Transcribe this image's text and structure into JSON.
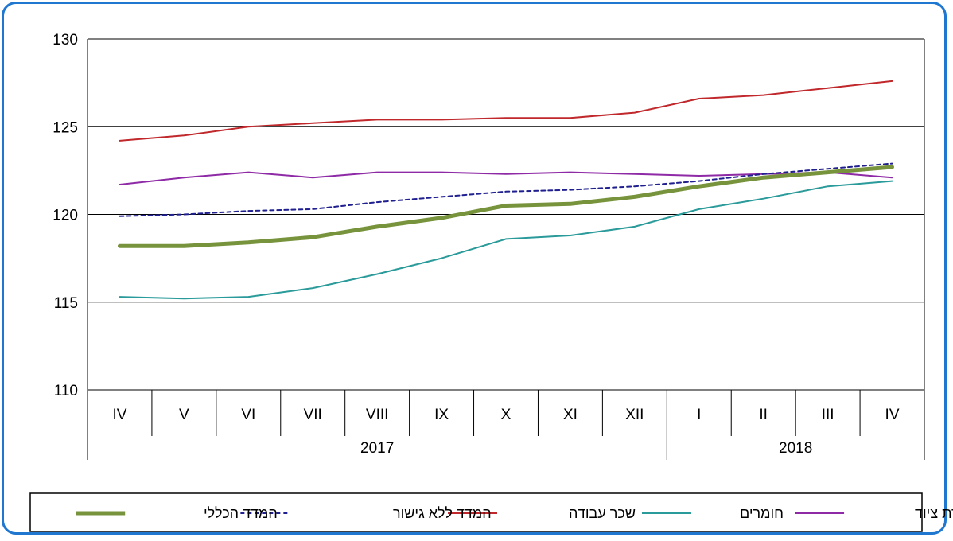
{
  "chart_data": {
    "type": "line",
    "categories": [
      "IV",
      "V",
      "VI",
      "VII",
      "VIII",
      "IX",
      "X",
      "XI",
      "XII",
      "I",
      "II",
      "III",
      "IV"
    ],
    "year_groups": [
      {
        "label": "2017",
        "start": 0,
        "end": 8
      },
      {
        "label": "2018",
        "start": 9,
        "end": 12
      }
    ],
    "ylim": [
      110,
      130
    ],
    "yticks": [
      "110",
      "115",
      "120",
      "125",
      "130"
    ],
    "grid": true,
    "legend_position": "bottom",
    "series": [
      {
        "name": "המדד הכללי",
        "color": "#77933c",
        "style": "solid-thick",
        "values": [
          118.2,
          118.2,
          118.4,
          118.7,
          119.3,
          119.8,
          120.5,
          120.6,
          121.0,
          121.6,
          122.1,
          122.4,
          122.7
        ]
      },
      {
        "name": "המדד ללא גישור",
        "color": "#1f1f8f",
        "style": "dashed",
        "values": [
          119.9,
          120.0,
          120.2,
          120.3,
          120.7,
          121.0,
          121.3,
          121.4,
          121.6,
          121.9,
          122.3,
          122.6,
          122.9
        ]
      },
      {
        "name": "שכר עבודה",
        "color": "#c0282c",
        "style": "solid",
        "values": [
          124.2,
          124.5,
          125.0,
          125.2,
          125.4,
          125.4,
          125.5,
          125.5,
          125.8,
          126.6,
          126.8,
          127.2,
          127.6
        ]
      },
      {
        "name": "חומרים",
        "color": "#2a9a9a",
        "style": "solid",
        "values": [
          115.3,
          115.2,
          115.3,
          115.8,
          116.6,
          117.5,
          118.6,
          118.8,
          119.3,
          120.3,
          120.9,
          121.6,
          121.9
        ]
      },
      {
        "name": "שכירת ציוד",
        "color": "#8e2aa6",
        "style": "solid",
        "values": [
          121.7,
          122.1,
          122.4,
          122.1,
          122.4,
          122.4,
          122.3,
          122.4,
          122.3,
          122.2,
          122.3,
          122.4,
          122.1
        ]
      }
    ]
  }
}
